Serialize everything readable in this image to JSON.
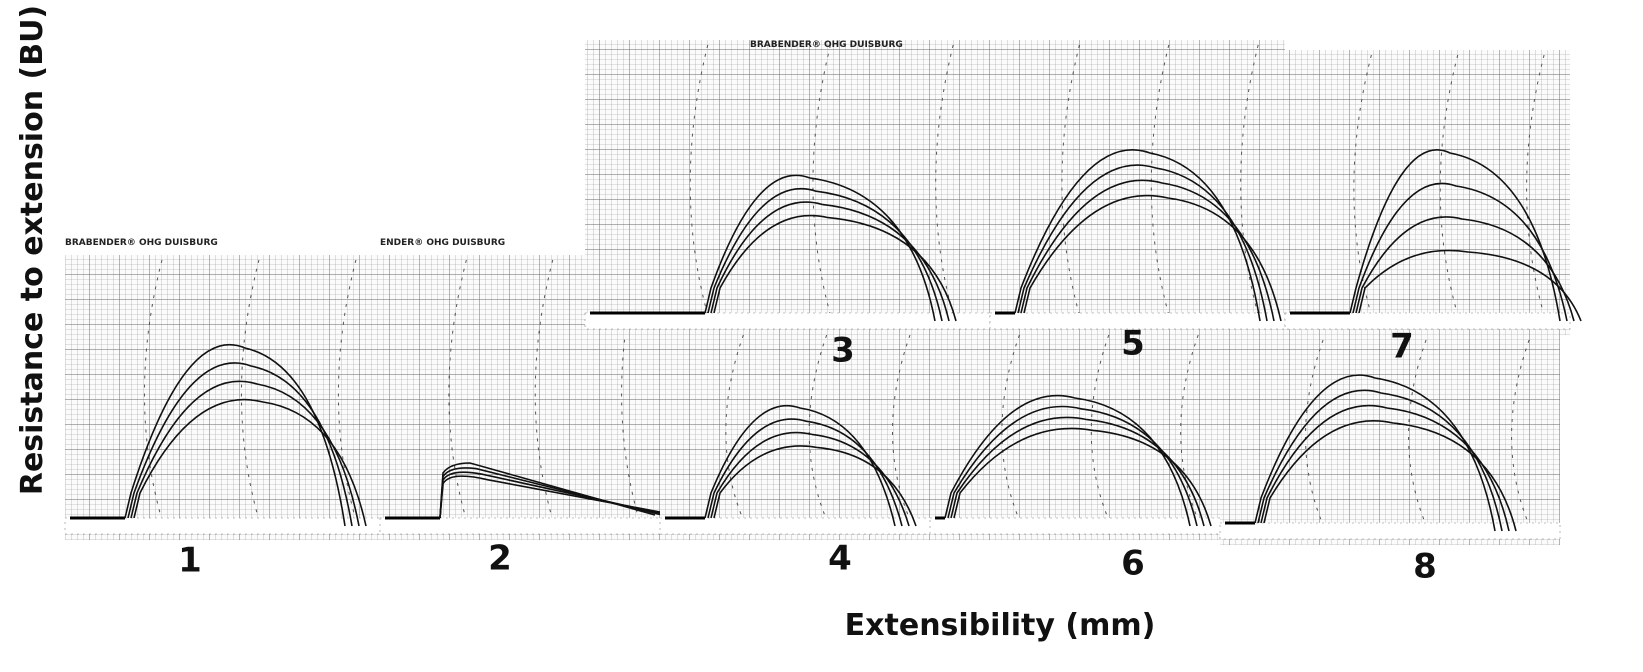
{
  "y_label": "Resistance to extension (BU)",
  "x_label": "Extensibility (mm)",
  "panels": [
    {
      "label": "1",
      "header": "BRABENDER® OHG DUISBURG"
    },
    {
      "label": "2",
      "header": "ENDER® OHG DUISBURG"
    },
    {
      "label": "4"
    },
    {
      "label": "6"
    },
    {
      "label": "8"
    },
    {
      "label": "3",
      "header": "BRABENDER® OHG DUISBURG"
    },
    {
      "label": "5"
    },
    {
      "label": "7"
    }
  ]
}
